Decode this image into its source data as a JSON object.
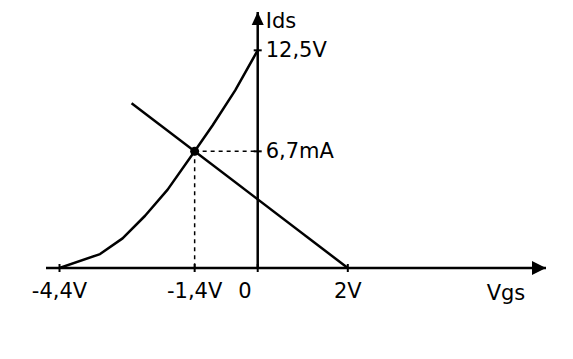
{
  "chart_data": {
    "type": "line",
    "x_label": "Vgs",
    "y_label": "Ids",
    "xlim": [
      -4.7,
      6.4
    ],
    "ylim": [
      0,
      14.7
    ],
    "xticks": [
      {
        "value": -4.4,
        "label": "-4,4V"
      },
      {
        "value": -1.4,
        "label": "-1,4V"
      },
      0,
      {
        "value": 2,
        "label": "2V"
      }
    ],
    "yticks": [
      {
        "value": 6.7,
        "label": "6,7mA"
      },
      {
        "value": 12.5,
        "label": "12,5V"
      }
    ],
    "grid": false,
    "series": [
      {
        "color": "#000000",
        "line_style": "solid",
        "x": [
          -4.4,
          -3.5,
          -3,
          -2.5,
          -2,
          -1.4,
          -1,
          -0.5,
          0
        ],
        "values": [
          0,
          0.8,
          1.7,
          3,
          4.5,
          6.7,
          8.2,
          10.2,
          12.5
        ]
      },
      {
        "color": "#000000",
        "line_style": "solid",
        "x": [
          -2.8,
          2
        ],
        "values": [
          9.46,
          0
        ]
      }
    ],
    "operating_point": {
      "x": -1.4,
      "y": 6.7
    }
  }
}
